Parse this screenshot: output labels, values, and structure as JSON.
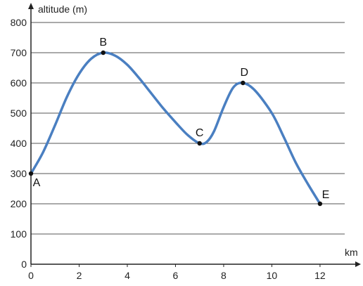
{
  "chart_data": {
    "type": "line",
    "title": "",
    "xlabel": "km",
    "ylabel": "altitude (m)",
    "xlim": [
      0,
      13.2
    ],
    "ylim": [
      0,
      800
    ],
    "grid": "horizontal",
    "x_ticks": [
      0,
      2,
      4,
      6,
      8,
      10,
      12
    ],
    "y_ticks": [
      0,
      100,
      200,
      300,
      400,
      500,
      600,
      700,
      800
    ],
    "x_tick_labels": [
      "0",
      "2",
      "4",
      "6",
      "8",
      "10",
      "12"
    ],
    "y_tick_labels": [
      "0",
      "100",
      "200",
      "300",
      "400",
      "500",
      "600",
      "700",
      "800"
    ],
    "line_color": "#4a7fc1",
    "series": [
      {
        "values": [
          [
            0,
            300
          ],
          [
            0.5,
            370
          ],
          [
            1,
            460
          ],
          [
            1.5,
            555
          ],
          [
            2,
            630
          ],
          [
            2.5,
            680
          ],
          [
            3,
            700
          ],
          [
            3.5,
            690
          ],
          [
            4,
            660
          ],
          [
            4.5,
            615
          ],
          [
            5,
            565
          ],
          [
            5.5,
            515
          ],
          [
            6,
            470
          ],
          [
            6.5,
            428
          ],
          [
            7,
            400
          ],
          [
            7.3,
            405
          ],
          [
            7.6,
            440
          ],
          [
            8,
            520
          ],
          [
            8.4,
            585
          ],
          [
            8.8,
            600
          ],
          [
            9.3,
            575
          ],
          [
            10,
            500
          ],
          [
            10.5,
            420
          ],
          [
            11,
            335
          ],
          [
            11.5,
            265
          ],
          [
            12,
            200
          ]
        ]
      }
    ],
    "points": [
      {
        "label": "A",
        "x": 0,
        "y": 300
      },
      {
        "label": "B",
        "x": 3,
        "y": 700
      },
      {
        "label": "C",
        "x": 7,
        "y": 400
      },
      {
        "label": "D",
        "x": 8.8,
        "y": 600
      },
      {
        "label": "E",
        "x": 12,
        "y": 200
      }
    ]
  }
}
